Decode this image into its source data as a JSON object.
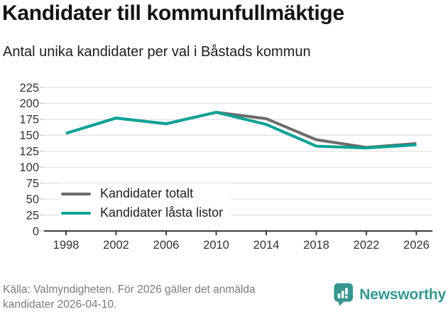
{
  "header": {
    "title": "Kandidater till kommunfullmäktige",
    "subtitle": "Antal unika kandidater per val i Båstads kommun"
  },
  "chart_data": {
    "type": "line",
    "title": "Kandidater till kommunfullmäktige",
    "subtitle": "Antal unika kandidater per val i Båstads kommun",
    "categories": [
      1998,
      2002,
      2006,
      2010,
      2014,
      2018,
      2022,
      2026
    ],
    "series": [
      {
        "name": "Kandidater totalt",
        "color": "#6b6b6b",
        "values": [
          153,
          177,
          168,
          186,
          176,
          143,
          131,
          137
        ]
      },
      {
        "name": "Kandidater låsta listor",
        "color": "#0aa296",
        "values": [
          153,
          177,
          168,
          186,
          167,
          133,
          130,
          135
        ]
      }
    ],
    "xlabel": "",
    "ylabel": "",
    "ylim": [
      0,
      225
    ],
    "ytick_step": 25,
    "grid": true,
    "legend_position": "inside-bottom-left"
  },
  "footer": {
    "source": "Källa: Valmyndigheten. För 2026 gäller det anmälda kandidater 2026-04-10.",
    "brand": "Newsworthy",
    "brand_color": "#36968f"
  }
}
